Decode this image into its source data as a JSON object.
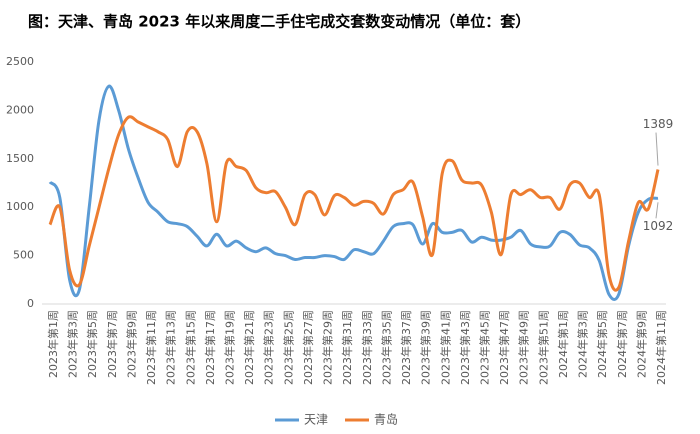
{
  "chart_data": {
    "type": "line",
    "title": "图：天津、青岛 2023 年以来周度二手住宅成交套数变动情况（单位：套）",
    "categories": [
      "2023年第1周",
      null,
      "2023年第3周",
      null,
      "2023年第5周",
      null,
      "2023年第7周",
      null,
      "2023年第9周",
      null,
      "2023年第11周",
      null,
      "2023年第13周",
      null,
      "2023年第15周",
      null,
      "2023年第17周",
      null,
      "2023年第19周",
      null,
      "2023年第21周",
      null,
      "2023年第23周",
      null,
      "2023年第25周",
      null,
      "2023年第27周",
      null,
      "2023年第29周",
      null,
      "2023年第31周",
      null,
      "2023年第33周",
      null,
      "2023年第35周",
      null,
      "2023年第37周",
      null,
      "2023年第39周",
      null,
      "2023年第41周",
      null,
      "2023年第43周",
      null,
      "2023年第45周",
      null,
      "2023年第47周",
      null,
      "2023年第49周",
      null,
      "2023年第51周",
      null,
      "2024年第1周",
      null,
      "2024年第3周",
      null,
      "2024年第5周",
      null,
      "2024年第7周",
      null,
      "2024年第9周",
      null,
      "2024年第11周"
    ],
    "series": [
      {
        "name": "天津",
        "color": "#5b9bd5",
        "values": [
          1260,
          1100,
          250,
          150,
          1000,
          1900,
          2250,
          2000,
          1600,
          1300,
          1050,
          950,
          850,
          830,
          800,
          700,
          600,
          720,
          600,
          650,
          580,
          540,
          580,
          520,
          500,
          460,
          480,
          480,
          500,
          490,
          460,
          560,
          540,
          520,
          650,
          800,
          830,
          820,
          620,
          830,
          740,
          740,
          760,
          640,
          690,
          660,
          660,
          690,
          760,
          620,
          590,
          600,
          740,
          720,
          610,
          580,
          450,
          100,
          100,
          600,
          950,
          1080,
          1092
        ]
      },
      {
        "name": "青岛",
        "color": "#ed7d31",
        "values": [
          820,
          1000,
          350,
          200,
          600,
          1000,
          1400,
          1750,
          1930,
          1880,
          1830,
          1780,
          1700,
          1420,
          1780,
          1780,
          1450,
          850,
          1460,
          1420,
          1380,
          1200,
          1150,
          1160,
          1000,
          820,
          1130,
          1130,
          920,
          1120,
          1100,
          1020,
          1060,
          1040,
          930,
          1130,
          1180,
          1260,
          900,
          510,
          1350,
          1480,
          1280,
          1250,
          1230,
          950,
          510,
          1130,
          1130,
          1180,
          1100,
          1100,
          980,
          1230,
          1250,
          1100,
          1130,
          300,
          170,
          650,
          1050,
          980,
          1389
        ]
      }
    ],
    "data_labels": "last",
    "ylim": [
      0,
      2500
    ],
    "yticks": [
      0,
      500,
      1000,
      1500,
      2000,
      2500
    ],
    "grid": false
  }
}
